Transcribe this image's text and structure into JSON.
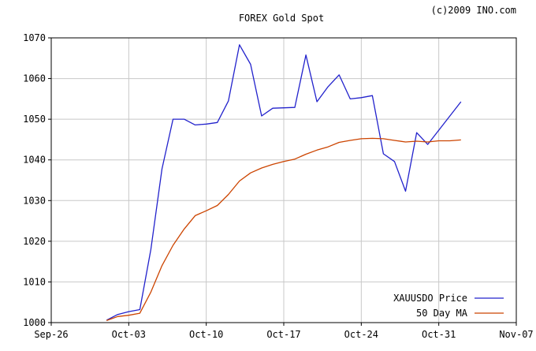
{
  "copyright": "(c)2009 INO.com",
  "chart_data": {
    "type": "line",
    "title": "FOREX Gold Spot",
    "xlabel": "",
    "ylabel": "",
    "x_ticks": [
      "Sep-26",
      "Oct-03",
      "Oct-10",
      "Oct-17",
      "Oct-24",
      "Oct-31",
      "Nov-07"
    ],
    "xlim": [
      "Sep-26",
      "Nov-07"
    ],
    "ylim": [
      1000,
      1070
    ],
    "y_ticks": [
      1000,
      1010,
      1020,
      1030,
      1040,
      1050,
      1060,
      1070
    ],
    "grid": true,
    "legend_position": "bottom-right",
    "series": [
      {
        "name": "XAUUSDO Price",
        "color": "#2222cc",
        "points": [
          [
            "Oct-01",
            1000.6
          ],
          [
            "Oct-02",
            1002.0
          ],
          [
            "Oct-03",
            1002.7
          ],
          [
            "Oct-04",
            1003.2
          ],
          [
            "Oct-05",
            1018.0
          ],
          [
            "Oct-06",
            1037.8
          ],
          [
            "Oct-07",
            1050.0
          ],
          [
            "Oct-08",
            1050.0
          ],
          [
            "Oct-09",
            1048.6
          ],
          [
            "Oct-10",
            1048.8
          ],
          [
            "Oct-11",
            1049.2
          ],
          [
            "Oct-12",
            1054.5
          ],
          [
            "Oct-13",
            1068.3
          ],
          [
            "Oct-14",
            1063.5
          ],
          [
            "Oct-15",
            1050.8
          ],
          [
            "Oct-16",
            1052.7
          ],
          [
            "Oct-17",
            1052.8
          ],
          [
            "Oct-18",
            1052.9
          ],
          [
            "Oct-19",
            1065.8
          ],
          [
            "Oct-20",
            1054.3
          ],
          [
            "Oct-21",
            1058.0
          ],
          [
            "Oct-22",
            1060.9
          ],
          [
            "Oct-23",
            1055.0
          ],
          [
            "Oct-24",
            1055.3
          ],
          [
            "Oct-25",
            1055.8
          ],
          [
            "Oct-26",
            1041.5
          ],
          [
            "Oct-27",
            1039.6
          ],
          [
            "Oct-28",
            1032.3
          ],
          [
            "Oct-29",
            1046.7
          ],
          [
            "Oct-30",
            1043.8
          ],
          [
            "Nov-02",
            1054.3
          ]
        ]
      },
      {
        "name": "50 Day MA",
        "color": "#cc4400",
        "points": [
          [
            "Oct-01",
            1000.5
          ],
          [
            "Oct-02",
            1001.5
          ],
          [
            "Oct-03",
            1001.8
          ],
          [
            "Oct-04",
            1002.3
          ],
          [
            "Oct-05",
            1007.5
          ],
          [
            "Oct-06",
            1014.0
          ],
          [
            "Oct-07",
            1019.0
          ],
          [
            "Oct-08",
            1023.0
          ],
          [
            "Oct-09",
            1026.3
          ],
          [
            "Oct-10",
            1027.5
          ],
          [
            "Oct-11",
            1028.8
          ],
          [
            "Oct-12",
            1031.5
          ],
          [
            "Oct-13",
            1034.8
          ],
          [
            "Oct-14",
            1036.8
          ],
          [
            "Oct-15",
            1038.0
          ],
          [
            "Oct-16",
            1038.9
          ],
          [
            "Oct-17",
            1039.6
          ],
          [
            "Oct-18",
            1040.2
          ],
          [
            "Oct-19",
            1041.4
          ],
          [
            "Oct-20",
            1042.4
          ],
          [
            "Oct-21",
            1043.2
          ],
          [
            "Oct-22",
            1044.3
          ],
          [
            "Oct-23",
            1044.8
          ],
          [
            "Oct-24",
            1045.2
          ],
          [
            "Oct-25",
            1045.3
          ],
          [
            "Oct-26",
            1045.2
          ],
          [
            "Oct-27",
            1044.8
          ],
          [
            "Oct-28",
            1044.4
          ],
          [
            "Oct-29",
            1044.6
          ],
          [
            "Oct-30",
            1044.4
          ],
          [
            "Oct-31",
            1044.7
          ],
          [
            "Nov-01",
            1044.7
          ],
          [
            "Nov-02",
            1044.9
          ]
        ]
      }
    ]
  }
}
